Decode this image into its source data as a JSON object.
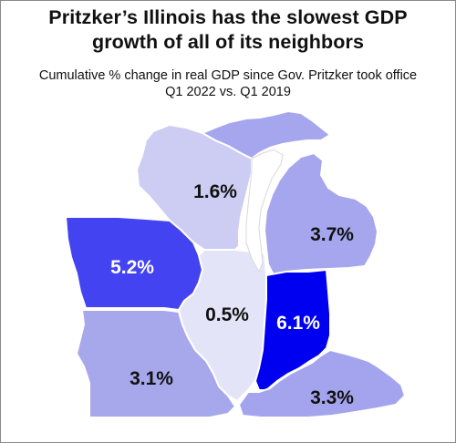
{
  "title": {
    "line1": "Pritzker’s Illinois has the slowest GDP",
    "line2": "growth of all of its neighbors"
  },
  "subtitle": {
    "line1": "Cumulative % change in real GDP since Gov. Pritzker took office",
    "line2": "Q1 2022 vs. Q1 2019"
  },
  "states": {
    "wisconsin": {
      "value": "1.6%",
      "fill": "#cdcdf3"
    },
    "michigan_upper": {
      "fill": "#a6a6ee"
    },
    "michigan_lower": {
      "value": "3.7%",
      "fill": "#a6a6ee"
    },
    "iowa": {
      "value": "5.2%",
      "fill": "#4343f2"
    },
    "illinois": {
      "value": "0.5%",
      "fill": "#e4e4f8"
    },
    "indiana": {
      "value": "6.1%",
      "fill": "#0000f0"
    },
    "missouri": {
      "value": "3.1%",
      "fill": "#a7a7ec"
    },
    "kentucky": {
      "value": "3.3%",
      "fill": "#a4a4ee"
    }
  },
  "colors": {
    "border": "#ffffff",
    "label_dark": "#111111",
    "label_light": "#ffffff",
    "lake": "#ffffff"
  }
}
